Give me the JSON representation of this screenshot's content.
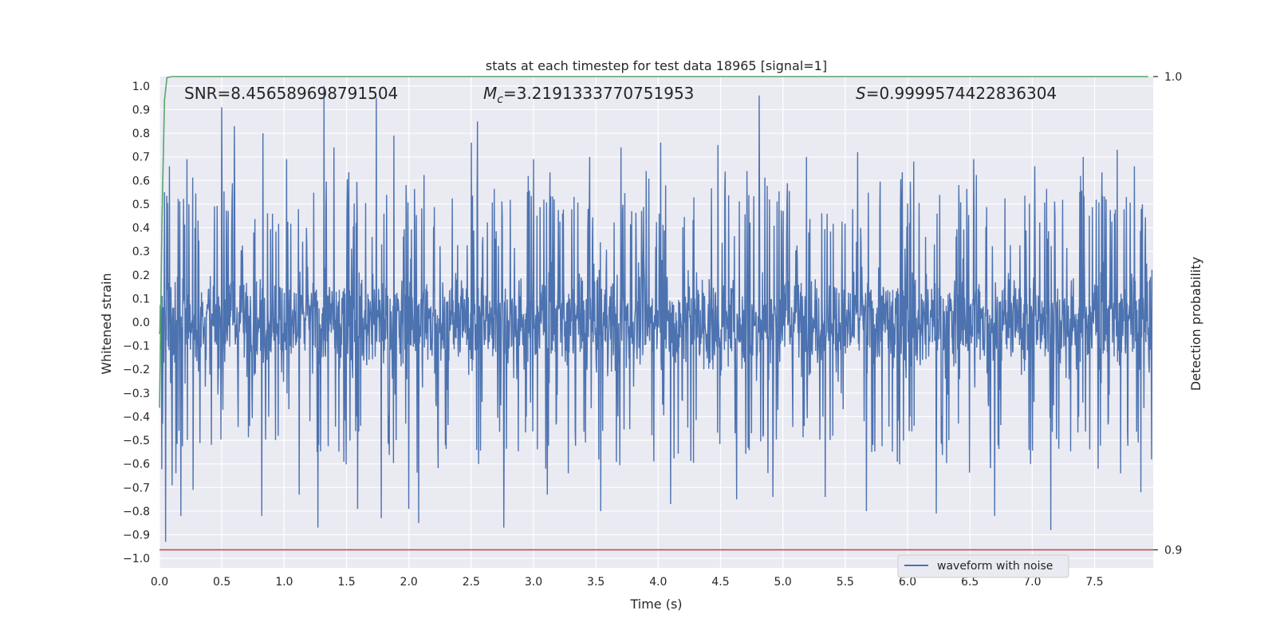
{
  "chart_data": {
    "type": "line",
    "title": "stats at each timestep for test data 18965 [signal=1]",
    "xlabel": "Time (s)",
    "ylabel": "Whitened strain",
    "ylabel_right": "Detection probability",
    "xlim": [
      0.0,
      7.97
    ],
    "ylim": [
      -1.04,
      1.04
    ],
    "ylim_right": [
      0.8962,
      1.0
    ],
    "x_ticks": [
      "0.0",
      "0.5",
      "1.0",
      "1.5",
      "2.0",
      "2.5",
      "3.0",
      "3.5",
      "4.0",
      "4.5",
      "5.0",
      "5.5",
      "6.0",
      "6.5",
      "7.0",
      "7.5"
    ],
    "y_ticks": [
      "1.0",
      "0.9",
      "0.8",
      "0.7",
      "0.6",
      "0.5",
      "0.4",
      "0.3",
      "0.2",
      "0.1",
      "0.0",
      "−0.1",
      "−0.2",
      "−0.3",
      "−0.4",
      "−0.5",
      "−0.6",
      "−0.7",
      "−0.8",
      "−0.9",
      "−1.0"
    ],
    "y_ticks_right": [
      "1.0",
      "0.9"
    ],
    "grid": true,
    "legend_position": "lower-center-right",
    "annotations": {
      "snr": "SNR=8.456589698791504",
      "mc_symbol": "M",
      "mc_sub": "c",
      "mc_value": "=3.2191333770751953",
      "s_symbol": "S",
      "s_value": "=0.9999574422836304"
    },
    "series": [
      {
        "name": "waveform with noise",
        "color": "#4c72b0",
        "description": "noisy whitened strain, approx. symmetric around 0 with dense body within about ±0.3 and spikes up to 1.0 and down to −0.93",
        "peaks": [
          {
            "x": 0.04,
            "y": 0.55
          },
          {
            "x": 0.05,
            "y": -0.93
          },
          {
            "x": 0.08,
            "y": 0.66
          },
          {
            "x": 0.1,
            "y": -0.69
          },
          {
            "x": 0.17,
            "y": -0.82
          },
          {
            "x": 0.22,
            "y": 0.69
          },
          {
            "x": 0.27,
            "y": -0.71
          },
          {
            "x": 0.5,
            "y": 0.91
          },
          {
            "x": 0.6,
            "y": 0.83
          },
          {
            "x": 0.83,
            "y": 0.8
          },
          {
            "x": 0.82,
            "y": -0.82
          },
          {
            "x": 1.02,
            "y": 0.69
          },
          {
            "x": 1.12,
            "y": -0.73
          },
          {
            "x": 1.27,
            "y": -0.87
          },
          {
            "x": 1.32,
            "y": 1.0
          },
          {
            "x": 1.4,
            "y": 0.74
          },
          {
            "x": 1.59,
            "y": -0.79
          },
          {
            "x": 1.74,
            "y": 0.95
          },
          {
            "x": 1.78,
            "y": -0.83
          },
          {
            "x": 1.88,
            "y": 0.79
          },
          {
            "x": 2.0,
            "y": -0.79
          },
          {
            "x": 2.08,
            "y": -0.85
          },
          {
            "x": 2.5,
            "y": 0.76
          },
          {
            "x": 2.55,
            "y": 0.85
          },
          {
            "x": 2.76,
            "y": -0.87
          },
          {
            "x": 3.0,
            "y": 0.69
          },
          {
            "x": 3.11,
            "y": -0.73
          },
          {
            "x": 3.45,
            "y": 0.7
          },
          {
            "x": 3.54,
            "y": -0.8
          },
          {
            "x": 3.7,
            "y": 0.74
          },
          {
            "x": 4.02,
            "y": 0.76
          },
          {
            "x": 4.1,
            "y": -0.77
          },
          {
            "x": 4.48,
            "y": 0.75
          },
          {
            "x": 4.63,
            "y": -0.75
          },
          {
            "x": 4.81,
            "y": 0.96
          },
          {
            "x": 4.92,
            "y": -0.74
          },
          {
            "x": 5.19,
            "y": 0.7
          },
          {
            "x": 5.34,
            "y": -0.74
          },
          {
            "x": 5.6,
            "y": 0.72
          },
          {
            "x": 5.67,
            "y": -0.8
          },
          {
            "x": 6.05,
            "y": 0.68
          },
          {
            "x": 6.23,
            "y": -0.81
          },
          {
            "x": 6.53,
            "y": 0.69
          },
          {
            "x": 6.7,
            "y": -0.82
          },
          {
            "x": 7.02,
            "y": 0.66
          },
          {
            "x": 7.15,
            "y": -0.88
          },
          {
            "x": 7.41,
            "y": 0.7
          },
          {
            "x": 7.68,
            "y": 0.73
          },
          {
            "x": 7.82,
            "y": 0.66
          },
          {
            "x": 7.87,
            "y": -0.72
          }
        ]
      },
      {
        "name": "",
        "color": "#55a868",
        "axis": "right",
        "x": [
          0.0,
          0.02,
          0.04,
          0.06,
          0.1,
          0.3,
          1.0,
          3.0,
          5.0,
          7.0,
          7.93
        ],
        "y": [
          0.93,
          0.97,
          0.995,
          0.9998,
          1.0,
          1.0,
          1.0,
          1.0,
          1.0,
          1.0,
          1.0
        ]
      },
      {
        "name": "",
        "color": "#c44e52",
        "axis": "right",
        "x": [
          0.0,
          7.97
        ],
        "y": [
          0.9,
          0.9
        ]
      }
    ]
  }
}
